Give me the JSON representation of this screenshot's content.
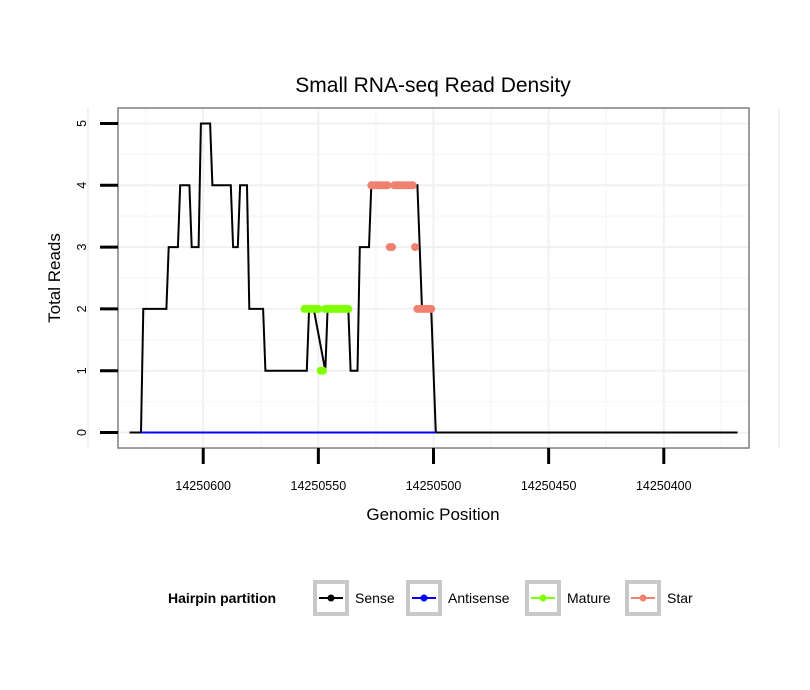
{
  "chart_data": {
    "type": "line",
    "title": "Small RNA-seq Read Density",
    "xlabel": "Genomic Position",
    "ylabel": "Total Reads",
    "x_reversed": true,
    "xlim": [
      14250637,
      14250363
    ],
    "ylim": [
      -0.25,
      5.25
    ],
    "x_ticks": [
      14250600,
      14250550,
      14250500,
      14250450,
      14250400
    ],
    "x_tick_labels": [
      "14250600",
      "14250550",
      "14250500",
      "14250450",
      "14250400"
    ],
    "y_ticks": [
      0,
      1,
      2,
      3,
      4,
      5
    ],
    "y_tick_labels": [
      "0",
      "1",
      "2",
      "3",
      "4",
      "5"
    ],
    "grid": true,
    "legend": {
      "title": "Hairpin partition",
      "position": "bottom",
      "entries": [
        {
          "label": "Sense",
          "color": "#000000"
        },
        {
          "label": "Antisense",
          "color": "#0000ff"
        },
        {
          "label": "Mature",
          "color": "#7fff00"
        },
        {
          "label": "Star",
          "color": "#f08070"
        }
      ]
    },
    "series": [
      {
        "name": "Sense",
        "color": "#000000",
        "marker": false,
        "x": [
          14250632,
          14250627,
          14250626,
          14250616,
          14250615,
          14250611,
          14250610,
          14250606,
          14250605,
          14250602,
          14250601,
          14250597,
          14250596,
          14250588,
          14250587,
          14250585,
          14250584,
          14250581,
          14250580,
          14250577,
          14250576,
          14250574,
          14250573,
          14250569,
          14250568,
          14250556,
          14250555,
          14250554,
          14250552,
          14250547,
          14250546,
          14250537,
          14250536,
          14250533,
          14250532,
          14250528,
          14250527,
          14250520,
          14250519,
          14250518,
          14250512,
          14250509,
          14250508,
          14250507,
          14250505,
          14250501,
          14250499,
          14250368
        ],
        "values": [
          0,
          0,
          2,
          2,
          3,
          3,
          4,
          4,
          3,
          3,
          5,
          5,
          4,
          4,
          3,
          3,
          4,
          4,
          2,
          2,
          2,
          2,
          1,
          1,
          1,
          1,
          1,
          2,
          2,
          1,
          2,
          2,
          1,
          1,
          3,
          3,
          4,
          4,
          4,
          4,
          4,
          4,
          4,
          4,
          2,
          2,
          0,
          0
        ]
      },
      {
        "name": "Antisense",
        "color": "#0000ff",
        "marker": false,
        "x": [
          14250627,
          14250499
        ],
        "values": [
          0,
          0
        ]
      },
      {
        "name": "Mature",
        "color": "#7fff00",
        "marker": true,
        "x": [
          14250556,
          14250555,
          14250554,
          14250553,
          14250552,
          14250551,
          14250550,
          14250549,
          14250548,
          14250547,
          14250546,
          14250545,
          14250544,
          14250543,
          14250542,
          14250541,
          14250540,
          14250539,
          14250538,
          14250537
        ],
        "values": [
          2,
          2,
          2,
          2,
          2,
          2,
          2,
          1,
          1,
          2,
          2,
          2,
          2,
          2,
          2,
          2,
          2,
          2,
          2,
          2
        ]
      },
      {
        "name": "Star",
        "color": "#f08070",
        "marker": true,
        "x": [
          14250527,
          14250526,
          14250525,
          14250524,
          14250523,
          14250522,
          14250521,
          14250520,
          14250519,
          14250518,
          14250517,
          14250516,
          14250515,
          14250514,
          14250513,
          14250512,
          14250511,
          14250510,
          14250509,
          14250508,
          14250507,
          14250506,
          14250505,
          14250504,
          14250503,
          14250502,
          14250501
        ],
        "values": [
          4,
          4,
          4,
          4,
          4,
          4,
          4,
          4,
          3,
          3,
          4,
          4,
          4,
          4,
          4,
          4,
          4,
          4,
          4,
          3,
          2,
          2,
          2,
          2,
          2,
          2,
          2
        ]
      }
    ]
  }
}
